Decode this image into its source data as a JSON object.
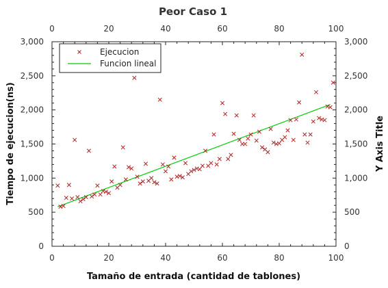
{
  "chart_data": {
    "type": "scatter",
    "title": "Peor Caso 1",
    "xlabel": "Tamaño de entrada (cantidad de tablones)",
    "ylabel": "Tiempo de ejecucion(ns)",
    "y2label": "Y Axis Title",
    "xlim": [
      0,
      100
    ],
    "ylim": [
      0,
      3000
    ],
    "x_ticks": [
      0,
      20,
      40,
      60,
      80,
      100
    ],
    "y_ticks": [
      0,
      500,
      1000,
      1500,
      2000,
      2500,
      3000
    ],
    "y_tick_labels": [
      "0",
      "500",
      "1,000",
      "1,500",
      "2,000",
      "2,500",
      "3,000"
    ],
    "grid": false,
    "legend_position": "top-left",
    "series": [
      {
        "name": "Ejecucion",
        "kind": "scatter",
        "marker": "x",
        "color": "#b22222",
        "x": [
          2,
          3,
          4,
          5,
          6,
          7,
          8,
          9,
          10,
          11,
          12,
          13,
          14,
          15,
          16,
          17,
          18,
          19,
          20,
          21,
          22,
          23,
          24,
          25,
          26,
          27,
          28,
          29,
          30,
          31,
          32,
          33,
          34,
          35,
          36,
          37,
          38,
          39,
          40,
          41,
          42,
          43,
          44,
          45,
          46,
          47,
          48,
          49,
          50,
          51,
          52,
          53,
          54,
          55,
          56,
          57,
          58,
          59,
          60,
          61,
          62,
          63,
          64,
          65,
          66,
          67,
          68,
          69,
          70,
          71,
          72,
          73,
          74,
          75,
          76,
          77,
          78,
          79,
          80,
          81,
          82,
          83,
          84,
          85,
          86,
          87,
          88,
          89,
          90,
          91,
          92,
          93,
          94,
          95,
          96,
          97,
          98,
          99
        ],
        "y": [
          890,
          580,
          590,
          710,
          900,
          700,
          1560,
          720,
          660,
          690,
          720,
          1400,
          730,
          760,
          890,
          760,
          810,
          800,
          780,
          950,
          1170,
          860,
          900,
          1450,
          980,
          1160,
          1140,
          2470,
          1020,
          920,
          950,
          1210,
          960,
          1000,
          940,
          920,
          2150,
          1200,
          1100,
          1170,
          980,
          1300,
          1020,
          1030,
          1010,
          1220,
          1060,
          1100,
          1120,
          1140,
          1130,
          1180,
          1400,
          1180,
          1220,
          1640,
          1200,
          1280,
          2100,
          1940,
          1280,
          1340,
          1650,
          1920,
          1560,
          1500,
          1500,
          1580,
          1640,
          1920,
          1550,
          1680,
          1450,
          1420,
          1380,
          1720,
          1520,
          1500,
          1510,
          1560,
          1600,
          1700,
          1850,
          1560,
          1860,
          2110,
          2810,
          1640,
          1520,
          1640,
          1830,
          2260,
          1880,
          1860,
          1850,
          2050,
          2040,
          2400
        ]
      },
      {
        "name": "Funcion lineal",
        "kind": "line",
        "color": "#00cc00",
        "x": [
          2,
          98
        ],
        "y": [
          580,
          2080
        ]
      }
    ]
  }
}
